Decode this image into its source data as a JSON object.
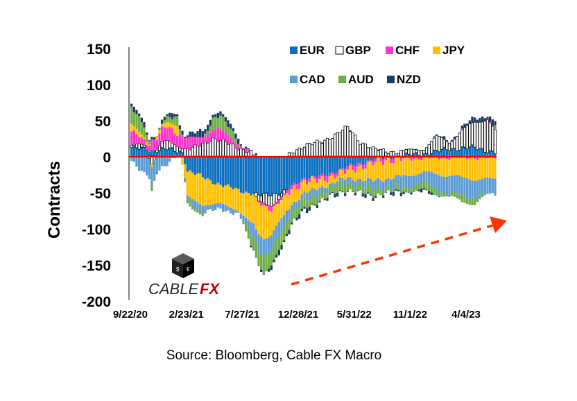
{
  "source": "Source: Bloomberg, Cable FX Macro",
  "logo": {
    "text_main": "CABLE",
    "text_accent": "FX"
  },
  "chart_data": {
    "type": "bar",
    "stacked": true,
    "ylabel": "Contracts",
    "ylim": [
      -200,
      150
    ],
    "yticks": [
      150,
      100,
      50,
      0,
      -50,
      -100,
      -150,
      -200
    ],
    "xtick_labels": [
      "9/22/20",
      "2/23/21",
      "7/27/21",
      "12/28/21",
      "5/31/22",
      "11/1/22",
      "4/4/23"
    ],
    "legend_position": "top-right",
    "colors": {
      "EUR": "#0b70c0",
      "GBP": "#ffffff",
      "CHF": "#ff33cc",
      "JPY": "#ffc000",
      "CAD": "#5b9bd5",
      "AUD": "#70ad47",
      "NZD": "#1f3864",
      "zero_line": "#ff0000",
      "trend_arrow": "#ff3300"
    },
    "series_order": [
      "EUR",
      "GBP",
      "CHF",
      "JPY",
      "CAD",
      "AUD",
      "NZD"
    ],
    "weeks_per_label": 22,
    "categories_count": 144,
    "series": [
      {
        "name": "EUR",
        "keyframes": [
          [
            0,
            12
          ],
          [
            8,
            8
          ],
          [
            14,
            10
          ],
          [
            20,
            5
          ],
          [
            22,
            -20
          ],
          [
            35,
            -40
          ],
          [
            50,
            -55
          ],
          [
            60,
            -50
          ],
          [
            68,
            -30
          ],
          [
            75,
            -28
          ],
          [
            85,
            -15
          ],
          [
            95,
            -5
          ],
          [
            105,
            0
          ],
          [
            115,
            3
          ],
          [
            125,
            10
          ],
          [
            135,
            12
          ],
          [
            143,
            5
          ]
        ]
      },
      {
        "name": "GBP",
        "keyframes": [
          [
            0,
            2
          ],
          [
            5,
            6
          ],
          [
            8,
            -8
          ],
          [
            12,
            10
          ],
          [
            20,
            8
          ],
          [
            25,
            12
          ],
          [
            32,
            25
          ],
          [
            40,
            15
          ],
          [
            47,
            5
          ],
          [
            50,
            -10
          ],
          [
            55,
            -15
          ],
          [
            60,
            -5
          ],
          [
            63,
            5
          ],
          [
            68,
            15
          ],
          [
            75,
            20
          ],
          [
            85,
            40
          ],
          [
            90,
            20
          ],
          [
            95,
            10
          ],
          [
            105,
            5
          ],
          [
            115,
            8
          ],
          [
            120,
            20
          ],
          [
            125,
            10
          ],
          [
            130,
            25
          ],
          [
            135,
            35
          ],
          [
            140,
            45
          ],
          [
            143,
            30
          ]
        ]
      },
      {
        "name": "CHF",
        "keyframes": [
          [
            0,
            18
          ],
          [
            5,
            8
          ],
          [
            10,
            15
          ],
          [
            15,
            20
          ],
          [
            22,
            15
          ],
          [
            28,
            10
          ],
          [
            35,
            15
          ],
          [
            40,
            8
          ],
          [
            45,
            2
          ],
          [
            55,
            -5
          ],
          [
            70,
            -5
          ],
          [
            90,
            -5
          ],
          [
            110,
            -3
          ],
          [
            125,
            -2
          ],
          [
            143,
            -2
          ]
        ]
      },
      {
        "name": "JPY",
        "keyframes": [
          [
            0,
            10
          ],
          [
            5,
            5
          ],
          [
            8,
            -3
          ],
          [
            12,
            5
          ],
          [
            18,
            12
          ],
          [
            22,
            -35
          ],
          [
            28,
            -40
          ],
          [
            35,
            -25
          ],
          [
            42,
            -30
          ],
          [
            47,
            -40
          ],
          [
            52,
            -45
          ],
          [
            57,
            -30
          ],
          [
            63,
            -20
          ],
          [
            70,
            -15
          ],
          [
            75,
            -10
          ],
          [
            85,
            -10
          ],
          [
            95,
            -25
          ],
          [
            105,
            -25
          ],
          [
            115,
            -20
          ],
          [
            125,
            -25
          ],
          [
            135,
            -30
          ],
          [
            143,
            -30
          ]
        ]
      },
      {
        "name": "CAD",
        "keyframes": [
          [
            0,
            -5
          ],
          [
            5,
            -25
          ],
          [
            8,
            -30
          ],
          [
            12,
            -15
          ],
          [
            18,
            0
          ],
          [
            22,
            -5
          ],
          [
            28,
            -10
          ],
          [
            35,
            -8
          ],
          [
            42,
            -5
          ],
          [
            47,
            -15
          ],
          [
            52,
            -25
          ],
          [
            57,
            -20
          ],
          [
            63,
            -10
          ],
          [
            70,
            -10
          ],
          [
            80,
            -5
          ],
          [
            95,
            -10
          ],
          [
            105,
            -15
          ],
          [
            115,
            -15
          ],
          [
            125,
            -25
          ],
          [
            135,
            -25
          ],
          [
            143,
            -20
          ]
        ]
      },
      {
        "name": "AUD",
        "keyframes": [
          [
            0,
            25
          ],
          [
            5,
            15
          ],
          [
            8,
            -5
          ],
          [
            12,
            5
          ],
          [
            18,
            10
          ],
          [
            22,
            -5
          ],
          [
            28,
            -5
          ],
          [
            32,
            15
          ],
          [
            35,
            20
          ],
          [
            40,
            10
          ],
          [
            47,
            -15
          ],
          [
            52,
            -25
          ],
          [
            57,
            -20
          ],
          [
            63,
            -15
          ],
          [
            70,
            -10
          ],
          [
            80,
            -10
          ],
          [
            95,
            -10
          ],
          [
            105,
            -5
          ],
          [
            115,
            -10
          ],
          [
            125,
            -5
          ],
          [
            135,
            -10
          ],
          [
            143,
            5
          ]
        ]
      },
      {
        "name": "NZD",
        "keyframes": [
          [
            0,
            5
          ],
          [
            10,
            3
          ],
          [
            20,
            5
          ],
          [
            28,
            8
          ],
          [
            35,
            6
          ],
          [
            42,
            5
          ],
          [
            50,
            -2
          ],
          [
            60,
            -5
          ],
          [
            70,
            -3
          ],
          [
            80,
            -2
          ],
          [
            95,
            -2
          ],
          [
            115,
            -2
          ],
          [
            135,
            5
          ],
          [
            143,
            8
          ]
        ]
      }
    ]
  }
}
